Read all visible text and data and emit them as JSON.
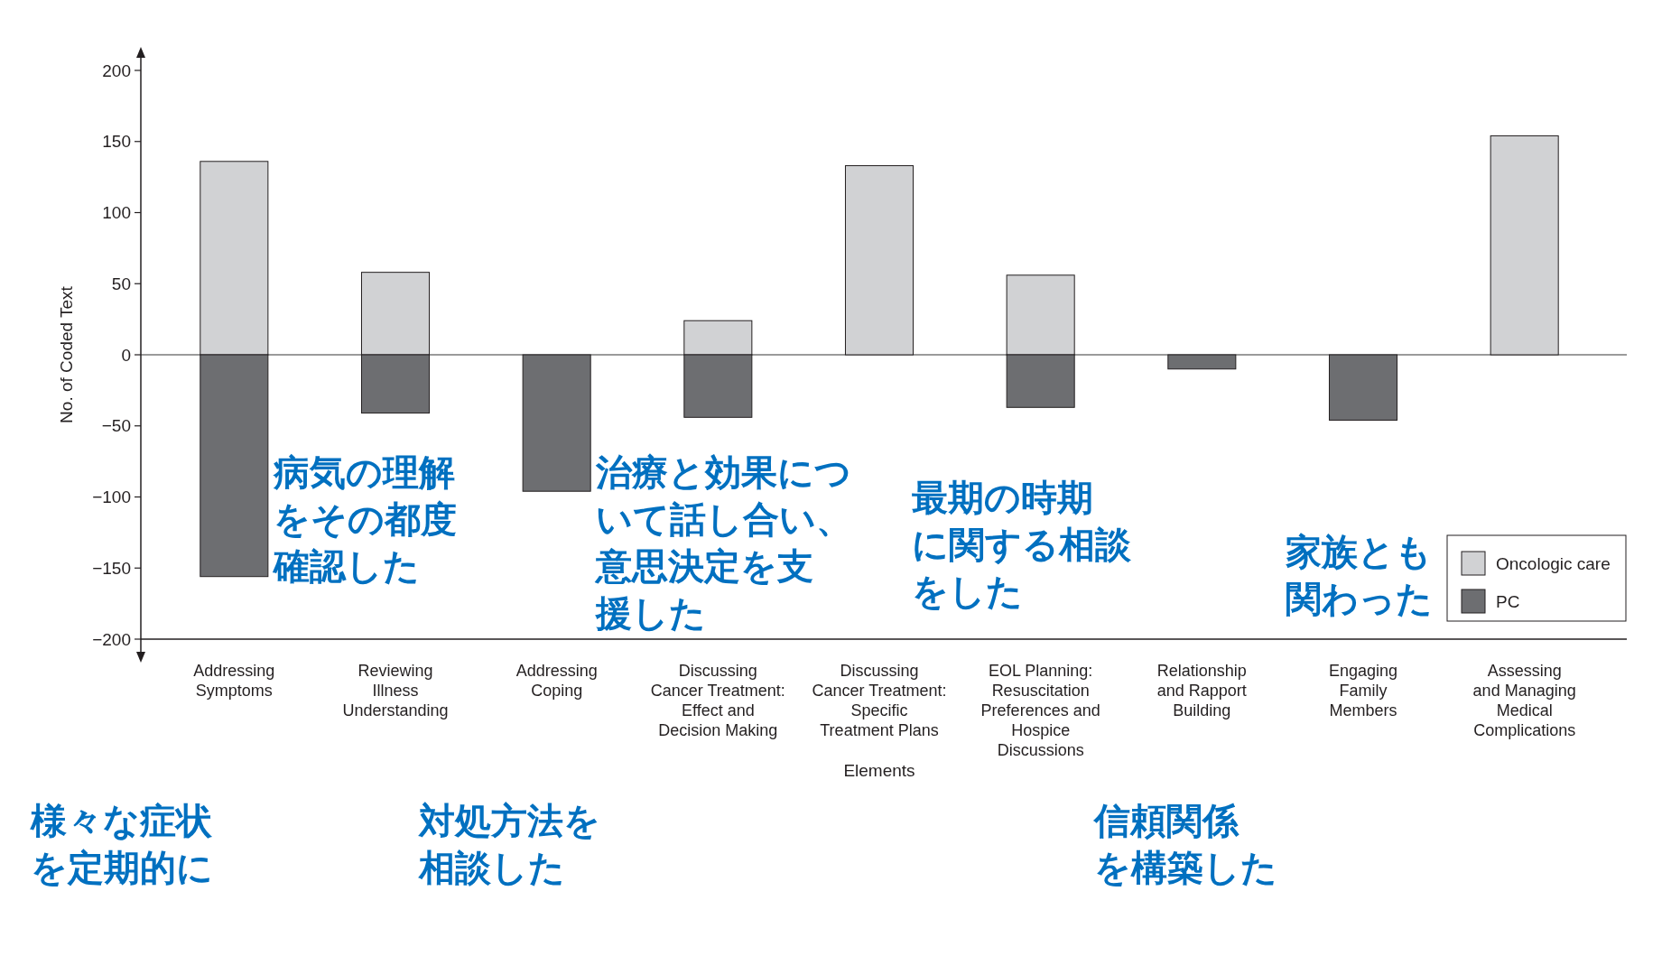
{
  "chart_data": {
    "type": "bar",
    "stacked": true,
    "xlabel": "Elements",
    "ylabel": "No. of Coded Text",
    "categories": [
      "Addressing\nSymptoms",
      "Reviewing\nIllness\nUnderstanding",
      "Addressing\nCoping",
      "Discussing\nCancer Treatment:\nEffect and\nDecision Making",
      "Discussing\nCancer Treatment:\nSpecific\nTreatment Plans",
      "EOL Planning:\nResuscitation\nPreferences and\nHospice\nDiscussions",
      "Relationship\nand Rapport\nBuilding",
      "Engaging\nFamily\nMembers",
      "Assessing\nand Managing\nMedical\nComplications"
    ],
    "series": [
      {
        "name": "Oncologic care",
        "color": "#d1d2d4",
        "values": [
          136,
          58,
          0,
          24,
          133,
          56,
          0,
          0,
          154
        ]
      },
      {
        "name": "PC",
        "color": "#6d6e71",
        "values": [
          -156,
          -41,
          -96,
          -44,
          0,
          -37,
          -10,
          -46,
          0
        ]
      }
    ],
    "ylim": [
      -200,
      200
    ],
    "yticks": [
      {
        "value": -200,
        "label": "−200"
      },
      {
        "value": -150,
        "label": "−150"
      },
      {
        "value": -100,
        "label": "−100"
      },
      {
        "value": -50,
        "label": "−50"
      },
      0,
      50,
      100,
      150,
      200
    ],
    "grid": false,
    "legend": "bottom right",
    "ref_lines": [
      {
        "axis": "y",
        "value": 0,
        "color": "#9a9a9a"
      }
    ],
    "annotations": [
      "様々な症状を定期的に",
      "病気の理解をその都度確認した",
      "対処方法を相談した",
      "治療と効果について話し合い、意思決定を支援した",
      "最期の時期に関する相談をした",
      "信頼関係を構築した",
      "家族とも関わった"
    ]
  }
}
